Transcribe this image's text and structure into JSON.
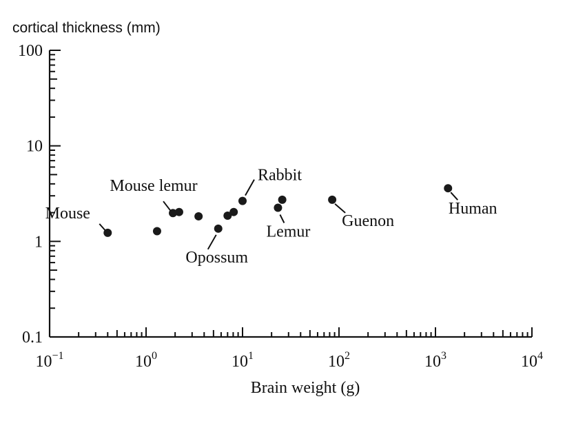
{
  "chart_data": {
    "type": "scatter",
    "ylabel": "cortical thickness (mm)",
    "xlabel": "Brain weight (g)",
    "xscale": "log",
    "yscale": "log",
    "xlim": [
      0.1,
      10000
    ],
    "ylim": [
      0.1,
      100
    ],
    "x_ticks": [
      {
        "base": "10",
        "exp": "−1"
      },
      {
        "base": "10",
        "exp": "0"
      },
      {
        "base": "10",
        "exp": "1"
      },
      {
        "base": "10",
        "exp": "2"
      },
      {
        "base": "10",
        "exp": "3"
      },
      {
        "base": "10",
        "exp": "4"
      }
    ],
    "y_ticks": [
      "0.1",
      "1",
      "10",
      "100"
    ],
    "grid": false,
    "points": [
      {
        "x": 0.4,
        "y": 1.23
      },
      {
        "x": 1.3,
        "y": 1.28
      },
      {
        "x": 1.9,
        "y": 1.98
      },
      {
        "x": 2.2,
        "y": 2.03
      },
      {
        "x": 3.5,
        "y": 1.83
      },
      {
        "x": 5.6,
        "y": 1.36
      },
      {
        "x": 7.0,
        "y": 1.86
      },
      {
        "x": 8.1,
        "y": 2.03
      },
      {
        "x": 10.0,
        "y": 2.65
      },
      {
        "x": 23.3,
        "y": 2.25
      },
      {
        "x": 25.8,
        "y": 2.73
      },
      {
        "x": 85.0,
        "y": 2.73
      },
      {
        "x": 1350.0,
        "y": 3.6
      }
    ],
    "annotations": [
      {
        "text": "Mouse",
        "x": 0.4,
        "y": 1.23
      },
      {
        "text": "Mouse lemur",
        "x": 1.9,
        "y": 1.98
      },
      {
        "text": "Opossum",
        "x": 5.6,
        "y": 1.36
      },
      {
        "text": "Rabbit",
        "x": 10.0,
        "y": 2.65
      },
      {
        "text": "Lemur",
        "x": 23.3,
        "y": 2.25
      },
      {
        "text": "Guenon",
        "x": 85.0,
        "y": 2.73
      },
      {
        "text": "Human",
        "x": 1350.0,
        "y": 3.6
      }
    ]
  }
}
